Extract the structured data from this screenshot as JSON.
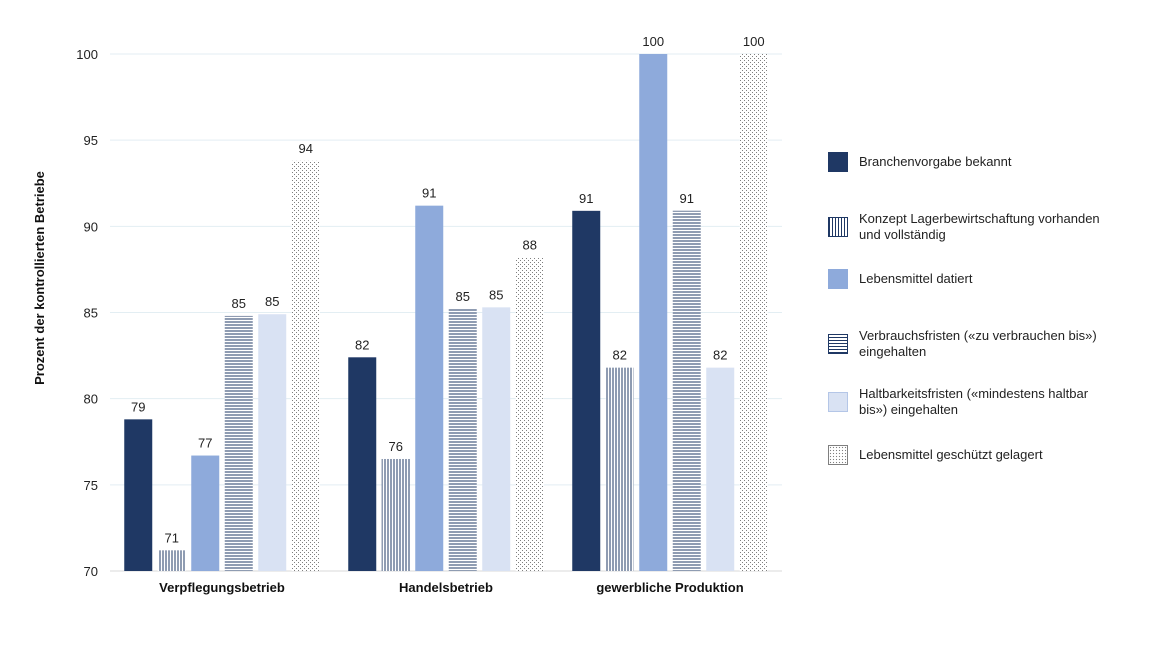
{
  "chart_data": {
    "type": "bar",
    "title": "",
    "xlabel": "",
    "ylabel": "Prozent der kontrollierten Betriebe",
    "ylim": [
      70,
      100
    ],
    "yticks": [
      70,
      75,
      80,
      85,
      90,
      95,
      100
    ],
    "grid": true,
    "legend_position": "right",
    "categories": [
      "Verpflegungsbetrieb",
      "Handelsbetrieb",
      "gewerbliche Produktion"
    ],
    "series": [
      {
        "name": "Branchenvorgabe bekannt",
        "values": [
          78.8,
          82.4,
          90.9
        ],
        "labels": [
          "79",
          "82",
          "91"
        ],
        "color": "#1f3864",
        "pattern": "solid"
      },
      {
        "name": "Konzept Lagerbewirtschaftung vorhanden und vollständig",
        "values": [
          71.2,
          76.5,
          81.8
        ],
        "labels": [
          "71",
          "76",
          "82"
        ],
        "color": "#1f3864",
        "pattern": "vertical-lines"
      },
      {
        "name": "Lebensmittel datiert",
        "values": [
          76.7,
          91.2,
          100
        ],
        "labels": [
          "77",
          "91",
          "100"
        ],
        "color": "#8eaadb",
        "pattern": "solid"
      },
      {
        "name": "Verbrauchsfristen («zu verbrauchen bis») eingehalten",
        "values": [
          84.8,
          85.2,
          90.9
        ],
        "labels": [
          "85",
          "85",
          "91"
        ],
        "color": "#1f3864",
        "pattern": "horizontal-lines"
      },
      {
        "name": "Haltbarkeitsfristen («mindestens haltbar bis») eingehalten",
        "values": [
          84.9,
          85.3,
          81.8
        ],
        "labels": [
          "85",
          "85",
          "82"
        ],
        "color": "#d9e2f3",
        "pattern": "solid"
      },
      {
        "name": "Lebensmittel geschützt gelagert",
        "values": [
          93.8,
          88.2,
          100
        ],
        "labels": [
          "94",
          "88",
          "100"
        ],
        "color": "#7f7f7f",
        "pattern": "dots"
      }
    ]
  }
}
